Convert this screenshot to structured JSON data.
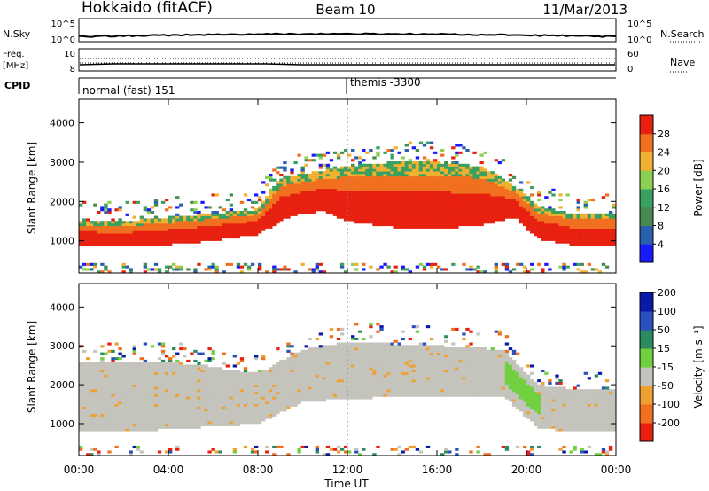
{
  "header": {
    "station": "Hokkaido (fitACF)",
    "beam": "Beam 10",
    "date": "11/Mar/2013"
  },
  "noise_panel": {
    "left_label": "N.Sky",
    "left_ticks": [
      "10^5",
      "10^0"
    ],
    "right_label": "N.Search",
    "right_ticks": [
      "10^5",
      "10^0"
    ]
  },
  "freq_panel": {
    "left_label_1": "Freq.",
    "left_label_2": "[MHz]",
    "left_ticks": [
      "10",
      "8"
    ],
    "right_label": "Nave",
    "right_ticks": [
      "60",
      "0"
    ]
  },
  "cpid_panel": {
    "label": "CPID",
    "modes": [
      "normal (fast) 151",
      "themis -3300"
    ]
  },
  "power_panel": {
    "ylabel": "Slant Range [km]",
    "yticks": [
      "1000",
      "2000",
      "3000",
      "4000"
    ],
    "colorbar_label": "Power [dB]",
    "colorbar_ticks": [
      "4",
      "8",
      "12",
      "16",
      "20",
      "24",
      "28"
    ]
  },
  "velocity_panel": {
    "ylabel": "Slant Range [km]",
    "yticks": [
      "1000",
      "2000",
      "3000",
      "4000"
    ],
    "colorbar_label": "Velocity [m s⁻¹]",
    "colorbar_ticks": [
      "200",
      "100",
      "50",
      "15",
      "-15",
      "-50",
      "-100",
      "-200"
    ]
  },
  "xaxis": {
    "label": "Time UT",
    "ticks": [
      "00:00",
      "04:00",
      "08:00",
      "12:00",
      "16:00",
      "20:00",
      "00:00"
    ]
  },
  "colors": {
    "power_scale": [
      "#1a1aff",
      "#2a5fb0",
      "#4a8a50",
      "#3aa060",
      "#8bd050",
      "#f0b030",
      "#f07020",
      "#e82010"
    ],
    "velocity_scale": [
      "#0a1aa8",
      "#2a4fc0",
      "#2a8a60",
      "#70d040",
      "#c4c4bc",
      "#f0a030",
      "#f07020",
      "#e82010"
    ],
    "ground_scatter": "#c4c4bc"
  },
  "chart_data": {
    "type": "heatmap",
    "x_unit": "hour UT",
    "xlim": [
      0,
      24
    ],
    "ylim_km": [
      180,
      4600
    ],
    "power_echo_band_km": {
      "hours": [
        0,
        2,
        4,
        6,
        8,
        9,
        10,
        11,
        12,
        14,
        16,
        18,
        19.5,
        20.5,
        22,
        24
      ],
      "lower": [
        900,
        850,
        900,
        1000,
        1150,
        1500,
        1700,
        1750,
        1500,
        1350,
        1300,
        1400,
        1600,
        1050,
        900,
        900
      ],
      "upper": [
        1500,
        1500,
        1600,
        1700,
        1800,
        2600,
        2700,
        2800,
        2900,
        3000,
        3000,
        2900,
        2400,
        1900,
        1700,
        1700
      ]
    },
    "velocity_ground_scatter_band_km": {
      "hours": [
        0,
        4,
        8,
        10,
        12,
        16,
        19,
        20.5,
        22,
        24
      ],
      "lower": [
        800,
        850,
        1000,
        1550,
        1650,
        1700,
        1700,
        900,
        800,
        800
      ],
      "upper": [
        2600,
        2600,
        2300,
        2900,
        3100,
        3000,
        2900,
        2000,
        1900,
        1900
      ]
    },
    "cpid_change_hour": 12
  }
}
